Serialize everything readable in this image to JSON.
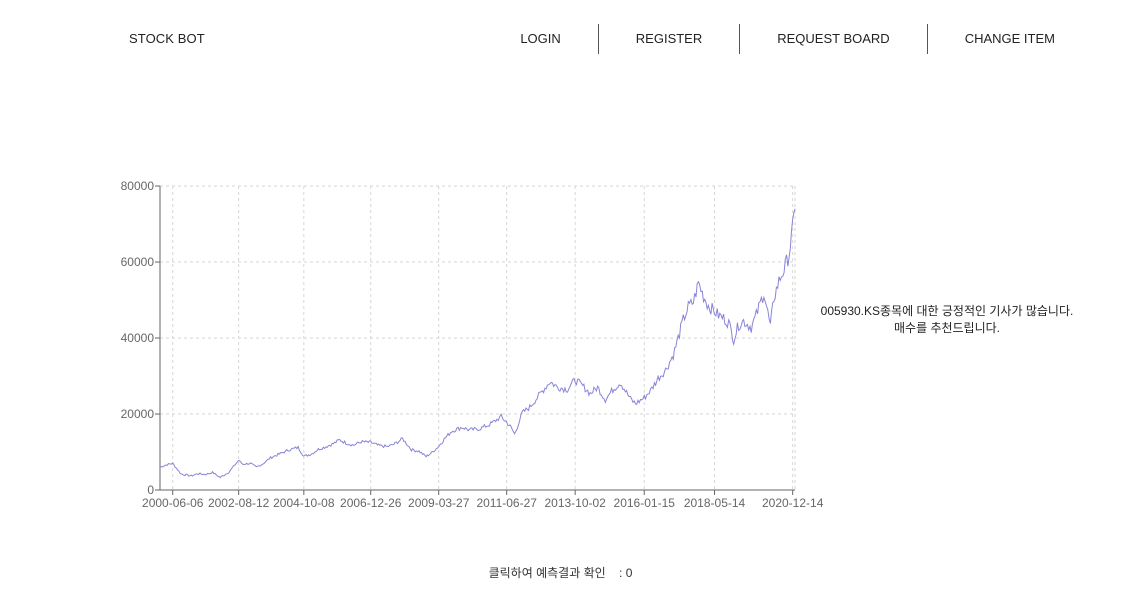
{
  "nav": {
    "brand": "STOCK BOT",
    "links": [
      "LOGIN",
      "REGISTER",
      "REQUEST BOARD",
      "CHANGE ITEM"
    ]
  },
  "recommendation": "005930.KS종목에 대한 긍정적인 기사가 많습니다. 매수를 추천드립니다.",
  "prediction": {
    "label": "클릭하여 예측결과 확인",
    "separator": ":",
    "value": "0"
  },
  "chart_data": {
    "type": "line",
    "title": "",
    "xlabel": "",
    "ylabel": "",
    "ylim": [
      0,
      80000
    ],
    "yticks": [
      0,
      20000,
      40000,
      60000,
      80000
    ],
    "grid": true,
    "line_color": "#8884d8",
    "xticks": [
      "2000-06-06",
      "2002-08-12",
      "2004-10-08",
      "2006-12-26",
      "2009-03-27",
      "2011-06-27",
      "2013-10-02",
      "2016-01-15",
      "2018-05-14",
      "2020-12-14"
    ],
    "series": [
      {
        "x": [
          "2000-01-04",
          "2000-04-01",
          "2000-06-06",
          "2000-09-15",
          "2001-01-15",
          "2001-04-01",
          "2001-07-01",
          "2001-10-01",
          "2002-01-01",
          "2002-04-15",
          "2002-08-12",
          "2002-10-01",
          "2003-01-01",
          "2003-03-15",
          "2003-06-01",
          "2003-09-01",
          "2004-01-01",
          "2004-04-15",
          "2004-08-01",
          "2004-10-08",
          "2005-01-01",
          "2005-04-01",
          "2005-07-01",
          "2005-10-01",
          "2005-12-15",
          "2006-03-01",
          "2006-06-01",
          "2006-09-01",
          "2006-12-26",
          "2007-04-01",
          "2007-07-15",
          "2007-10-01",
          "2008-01-15",
          "2008-05-01",
          "2008-08-01",
          "2008-10-25",
          "2009-01-01",
          "2009-03-27",
          "2009-06-01",
          "2009-09-01",
          "2010-01-01",
          "2010-04-01",
          "2010-08-01",
          "2010-12-01",
          "2011-03-01",
          "2011-04-20",
          "2011-06-27",
          "2011-08-20",
          "2011-10-01",
          "2012-01-01",
          "2012-04-01",
          "2012-08-01",
          "2012-12-01",
          "2013-03-01",
          "2013-07-01",
          "2013-10-02",
          "2014-01-01",
          "2014-04-01",
          "2014-07-01",
          "2014-10-01",
          "2015-01-01",
          "2015-04-01",
          "2015-08-01",
          "2015-10-01",
          "2016-01-15",
          "2016-04-01",
          "2016-07-01",
          "2016-10-01",
          "2017-01-01",
          "2017-03-01",
          "2017-05-01",
          "2017-07-01",
          "2017-09-01",
          "2017-11-01",
          "2018-01-01",
          "2018-03-01",
          "2018-05-14",
          "2018-07-01",
          "2018-09-01",
          "2018-11-01",
          "2019-01-01",
          "2019-03-01",
          "2019-05-01",
          "2019-08-01",
          "2019-10-01",
          "2020-01-01",
          "2020-03-19",
          "2020-05-01",
          "2020-07-01",
          "2020-09-01",
          "2020-11-01",
          "2020-12-14",
          "2021-01-11"
        ],
        "values": [
          6000,
          6700,
          7000,
          4200,
          3700,
          4300,
          4100,
          4600,
          3300,
          4700,
          7800,
          6800,
          7000,
          6000,
          6900,
          8500,
          9600,
          10600,
          11200,
          8900,
          9400,
          10700,
          11400,
          12200,
          13200,
          12400,
          11800,
          12700,
          12500,
          11700,
          11400,
          12000,
          13500,
          10600,
          10200,
          8800,
          9800,
          11500,
          13400,
          15500,
          16500,
          15800,
          16100,
          17200,
          18500,
          19300,
          17800,
          16400,
          14700,
          20300,
          21800,
          25200,
          28500,
          27100,
          26500,
          29000,
          27400,
          25400,
          27000,
          23800,
          26400,
          28300,
          24000,
          22700,
          24300,
          26200,
          29400,
          31600,
          35600,
          40000,
          44800,
          48200,
          49500,
          54500,
          51000,
          48500,
          47000,
          46000,
          45200,
          44000,
          39700,
          43500,
          44500,
          42800,
          46000,
          52000,
          43000,
          50500,
          55000,
          58000,
          62000,
          69000,
          74000
        ]
      }
    ]
  }
}
